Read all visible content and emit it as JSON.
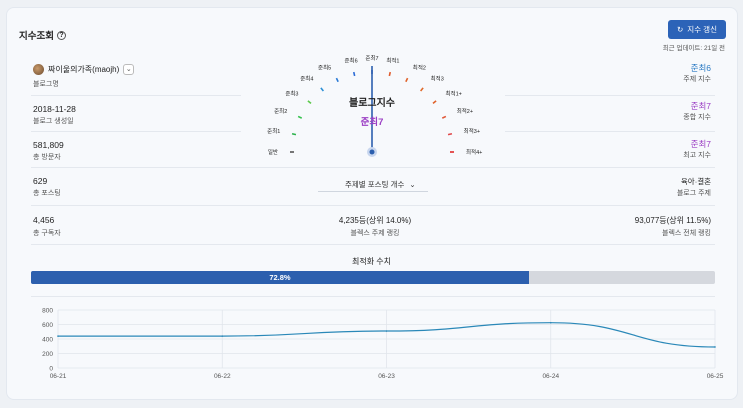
{
  "header": {
    "title": "지수조회",
    "help_icon": "question-circle-icon",
    "update_button": "지수 갱신",
    "update_icon": "refresh-icon",
    "last_update": "최근 업데이트: 21일 전"
  },
  "left": {
    "blog_name": "짜이울의가족(maojh)",
    "blog_name_label": "블로그명",
    "created": "2018-11-28",
    "created_label": "블로그 생성일",
    "visitors": "581,809",
    "visitors_label": "총 방문자",
    "posts": "629",
    "posts_label": "총 포스팅",
    "subscribers": "4,456",
    "subscribers_label": "총 구독자"
  },
  "gauge": {
    "title": "블로그지수",
    "value": "준최7",
    "labels": [
      "일반",
      "준최1",
      "준최2",
      "준최3",
      "준최4",
      "준최5",
      "준최6",
      "준최7",
      "최적1",
      "최적2",
      "최적3",
      "최적1+",
      "최적2+",
      "최적3+",
      "최적4+"
    ],
    "colors": [
      "#555555",
      "#2bb24c",
      "#36c24e",
      "#5cc94b",
      "#2a8fd6",
      "#2a7ad6",
      "#2a6ad6",
      "#2a5cc4",
      "#e05a2a",
      "#e0622a",
      "#e06a2a",
      "#e0622a",
      "#e05a3a",
      "#e0484a",
      "#e02a2a"
    ],
    "needle_index": 7
  },
  "topic_select": {
    "label": "주제별 포스팅 개수",
    "chevron": "chevron-down-icon"
  },
  "stats_right": {
    "topic_index": "준최6",
    "topic_index_label": "주제 지수",
    "overall_index": "준최7",
    "overall_index_label": "종합 지수",
    "max_index": "준최7",
    "max_index_label": "최고 지수",
    "blog_topic": "육아·결혼",
    "blog_topic_label": "블로그 주제",
    "total_rank": "93,077등(상위 11.5%)",
    "total_rank_label": "블렉스 전체 랭킹"
  },
  "center_rank": {
    "topic_rank": "4,235등(상위 14.0%)",
    "topic_rank_label": "블렉스 주제 랭킹"
  },
  "colors": {
    "index_blue": "#2a7ac4",
    "index_purple": "#9b3fc4",
    "accent": "#2c63b8"
  },
  "optimization": {
    "title": "최적화 수치",
    "value_text": "72.8%",
    "fraction": 0.728
  },
  "chart_data": {
    "type": "line",
    "x": [
      "06-21",
      "06-22",
      "06-23",
      "06-24",
      "06-25"
    ],
    "series": [
      {
        "values": [
          440,
          440,
          510,
          625,
          290
        ]
      }
    ],
    "yticks": [
      0,
      200,
      400,
      600,
      800
    ],
    "ylim": [
      0,
      800
    ],
    "grid": true,
    "title": "",
    "xlabel": "",
    "ylabel": ""
  }
}
